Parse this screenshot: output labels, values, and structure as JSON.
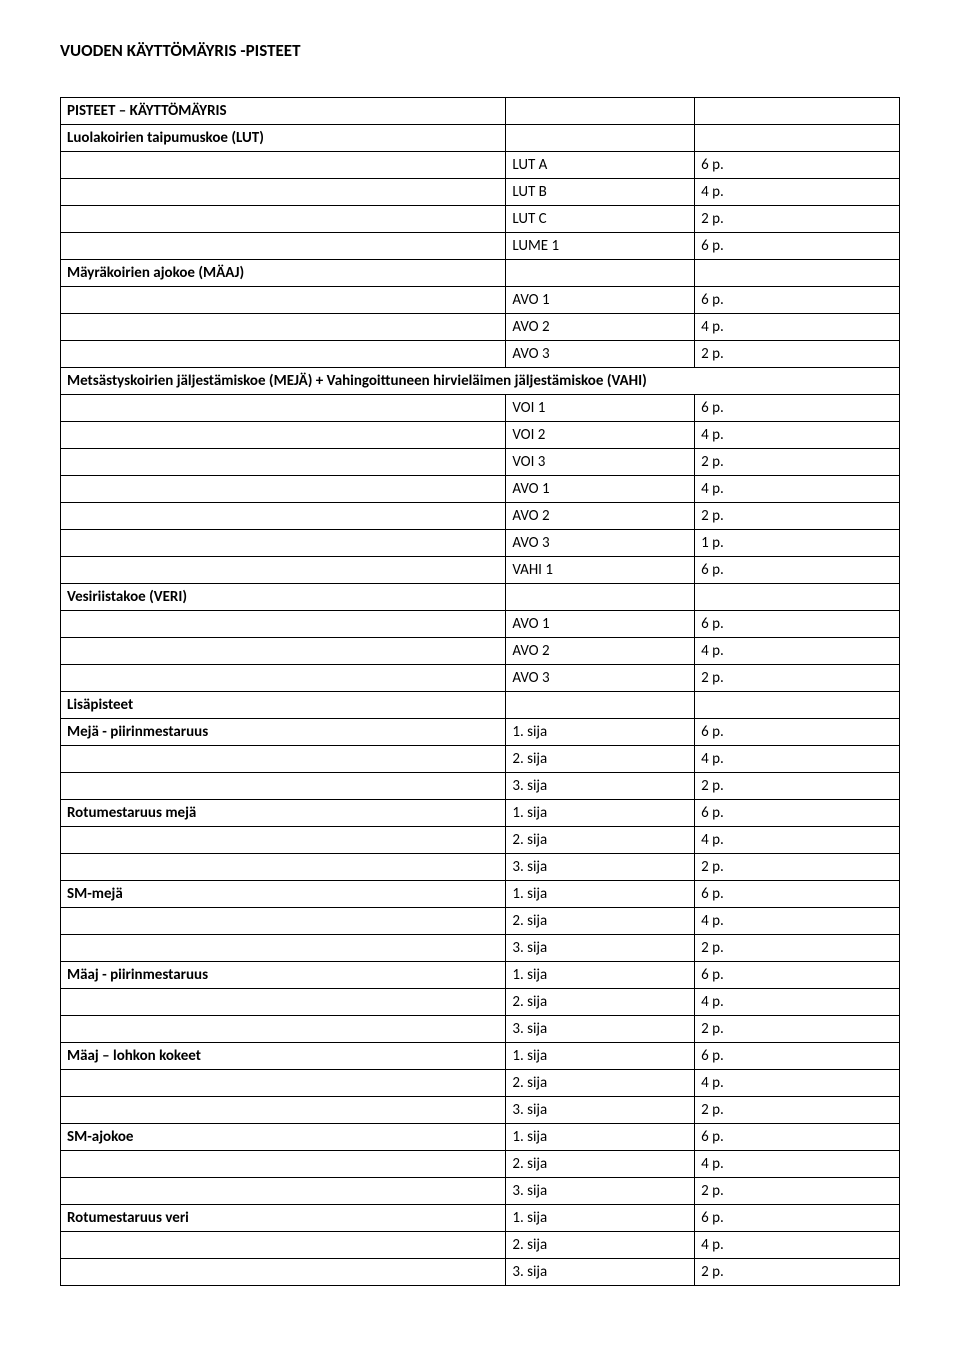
{
  "page_title": "VUODEN KÄYTTÖMÄYRIS -PISTEET",
  "rows": [
    {
      "c1": "PISTEET – KÄYTTÖMÄYRIS",
      "c1_bold": true,
      "c2": "",
      "c3": ""
    },
    {
      "c1": "Luolakoirien taipumuskoe (LUT)",
      "c1_bold": true,
      "c2": "",
      "c3": ""
    },
    {
      "c1": "",
      "c2": "LUT A",
      "c3": "6 p."
    },
    {
      "c1": "",
      "c2": "LUT B",
      "c3": "4 p."
    },
    {
      "c1": "",
      "c2": "LUT C",
      "c3": "2 p."
    },
    {
      "c1": "",
      "c2": "LUME 1",
      "c3": "6 p."
    },
    {
      "c1": "Mäyräkoirien ajokoe (MÄAJ)",
      "c1_bold": true,
      "c2": "",
      "c3": ""
    },
    {
      "c1": "",
      "c2": "AVO 1",
      "c3": "6 p."
    },
    {
      "c1": "",
      "c2": "AVO 2",
      "c3": "4 p."
    },
    {
      "c1": "",
      "c2": "AVO 3",
      "c3": "2 p."
    },
    {
      "c1": "Metsästyskoirien jäljestämiskoe (MEJÄ) + Vahingoittuneen hirvieläimen jäljestämiskoe (VAHI)",
      "c1_bold": true,
      "span": 3
    },
    {
      "c1": "",
      "c2": "VOI 1",
      "c3": "6 p."
    },
    {
      "c1": "",
      "c2": "VOI 2",
      "c3": "4 p."
    },
    {
      "c1": "",
      "c2": "VOI 3",
      "c3": "2 p."
    },
    {
      "c1": "",
      "c2": "AVO 1",
      "c3": "4 p."
    },
    {
      "c1": "",
      "c2": "AVO 2",
      "c3": "2 p."
    },
    {
      "c1": "",
      "c2": "AVO 3",
      "c3": "1 p."
    },
    {
      "c1": "",
      "c2": "VAHI 1",
      "c3": "6 p."
    },
    {
      "c1": "Vesiriistakoe (VERI)",
      "c1_bold": true,
      "c2": "",
      "c3": ""
    },
    {
      "c1": "",
      "c2": "AVO 1",
      "c3": "6 p."
    },
    {
      "c1": "",
      "c2": "AVO 2",
      "c3": "4 p."
    },
    {
      "c1": "",
      "c2": "AVO 3",
      "c3": "2 p."
    },
    {
      "c1": "Lisäpisteet",
      "c1_bold": true,
      "c2": "",
      "c3": ""
    },
    {
      "c1": "Mejä - piirinmestaruus",
      "c1_bold": true,
      "c2": "1. sija",
      "c3": "6 p."
    },
    {
      "c1": "",
      "c2": "2. sija",
      "c3": "4 p."
    },
    {
      "c1": "",
      "c2": "3. sija",
      "c3": "2 p."
    },
    {
      "c1": "Rotumestaruus mejä",
      "c1_bold": true,
      "c2": "1. sija",
      "c3": "6 p."
    },
    {
      "c1": "",
      "c2": "2. sija",
      "c3": "4 p."
    },
    {
      "c1": "",
      "c2": "3. sija",
      "c3": "2 p."
    },
    {
      "c1": "SM-mejä",
      "c1_bold": true,
      "c2": "1. sija",
      "c3": "6 p."
    },
    {
      "c1": "",
      "c2": "2. sija",
      "c3": "4 p."
    },
    {
      "c1": "",
      "c2": "3. sija",
      "c3": "2 p."
    },
    {
      "c1": "Mäaj - piirinmestaruus",
      "c1_bold": true,
      "c2": "1. sija",
      "c3": "6 p."
    },
    {
      "c1": "",
      "c2": "2. sija",
      "c3": "4 p."
    },
    {
      "c1": "",
      "c2": "3. sija",
      "c3": "2 p."
    },
    {
      "c1": "Mäaj – lohkon kokeet",
      "c1_bold": true,
      "c2": "1. sija",
      "c3": "6 p."
    },
    {
      "c1": "",
      "c2": "2. sija",
      "c3": "4 p."
    },
    {
      "c1": "",
      "c2": "3. sija",
      "c3": "2 p."
    },
    {
      "c1": "SM-ajokoe",
      "c1_bold": true,
      "c2": "1. sija",
      "c3": "6 p."
    },
    {
      "c1": "",
      "c2": "2. sija",
      "c3": "4 p."
    },
    {
      "c1": "",
      "c2": "3. sija",
      "c3": "2 p."
    },
    {
      "c1": "Rotumestaruus veri",
      "c1_bold": true,
      "c2": "1. sija",
      "c3": "6 p."
    },
    {
      "c1": "",
      "c2": "2. sija",
      "c3": "4 p."
    },
    {
      "c1": "",
      "c2": "3. sija",
      "c3": "2 p."
    }
  ]
}
